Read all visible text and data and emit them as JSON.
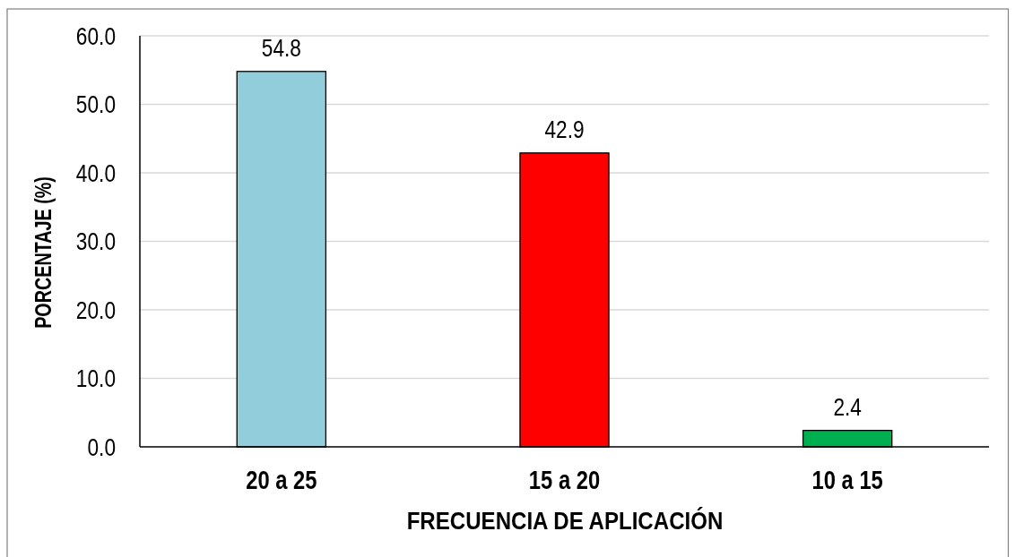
{
  "chart_data": {
    "type": "bar",
    "xlabel": "FRECUENCIA DE APLICACIÓN",
    "ylabel": "PORCENTAJE (%)",
    "categories": [
      "20 a 25",
      "15 a 20",
      "10 a 15"
    ],
    "values": [
      54.8,
      42.9,
      2.4
    ],
    "colors": [
      "#92cddc",
      "#ff0000",
      "#00b050"
    ],
    "ylim": [
      0,
      60
    ],
    "yticks": [
      {
        "value": 0,
        "label": "0.0"
      },
      {
        "value": 10,
        "label": "10.0"
      },
      {
        "value": 20,
        "label": "20.0"
      },
      {
        "value": 30,
        "label": "30.0"
      },
      {
        "value": 40,
        "label": "40.0"
      },
      {
        "value": 50,
        "label": "50.0"
      },
      {
        "value": 60,
        "label": "60.0"
      }
    ],
    "grid": "y",
    "data_labels": true
  }
}
